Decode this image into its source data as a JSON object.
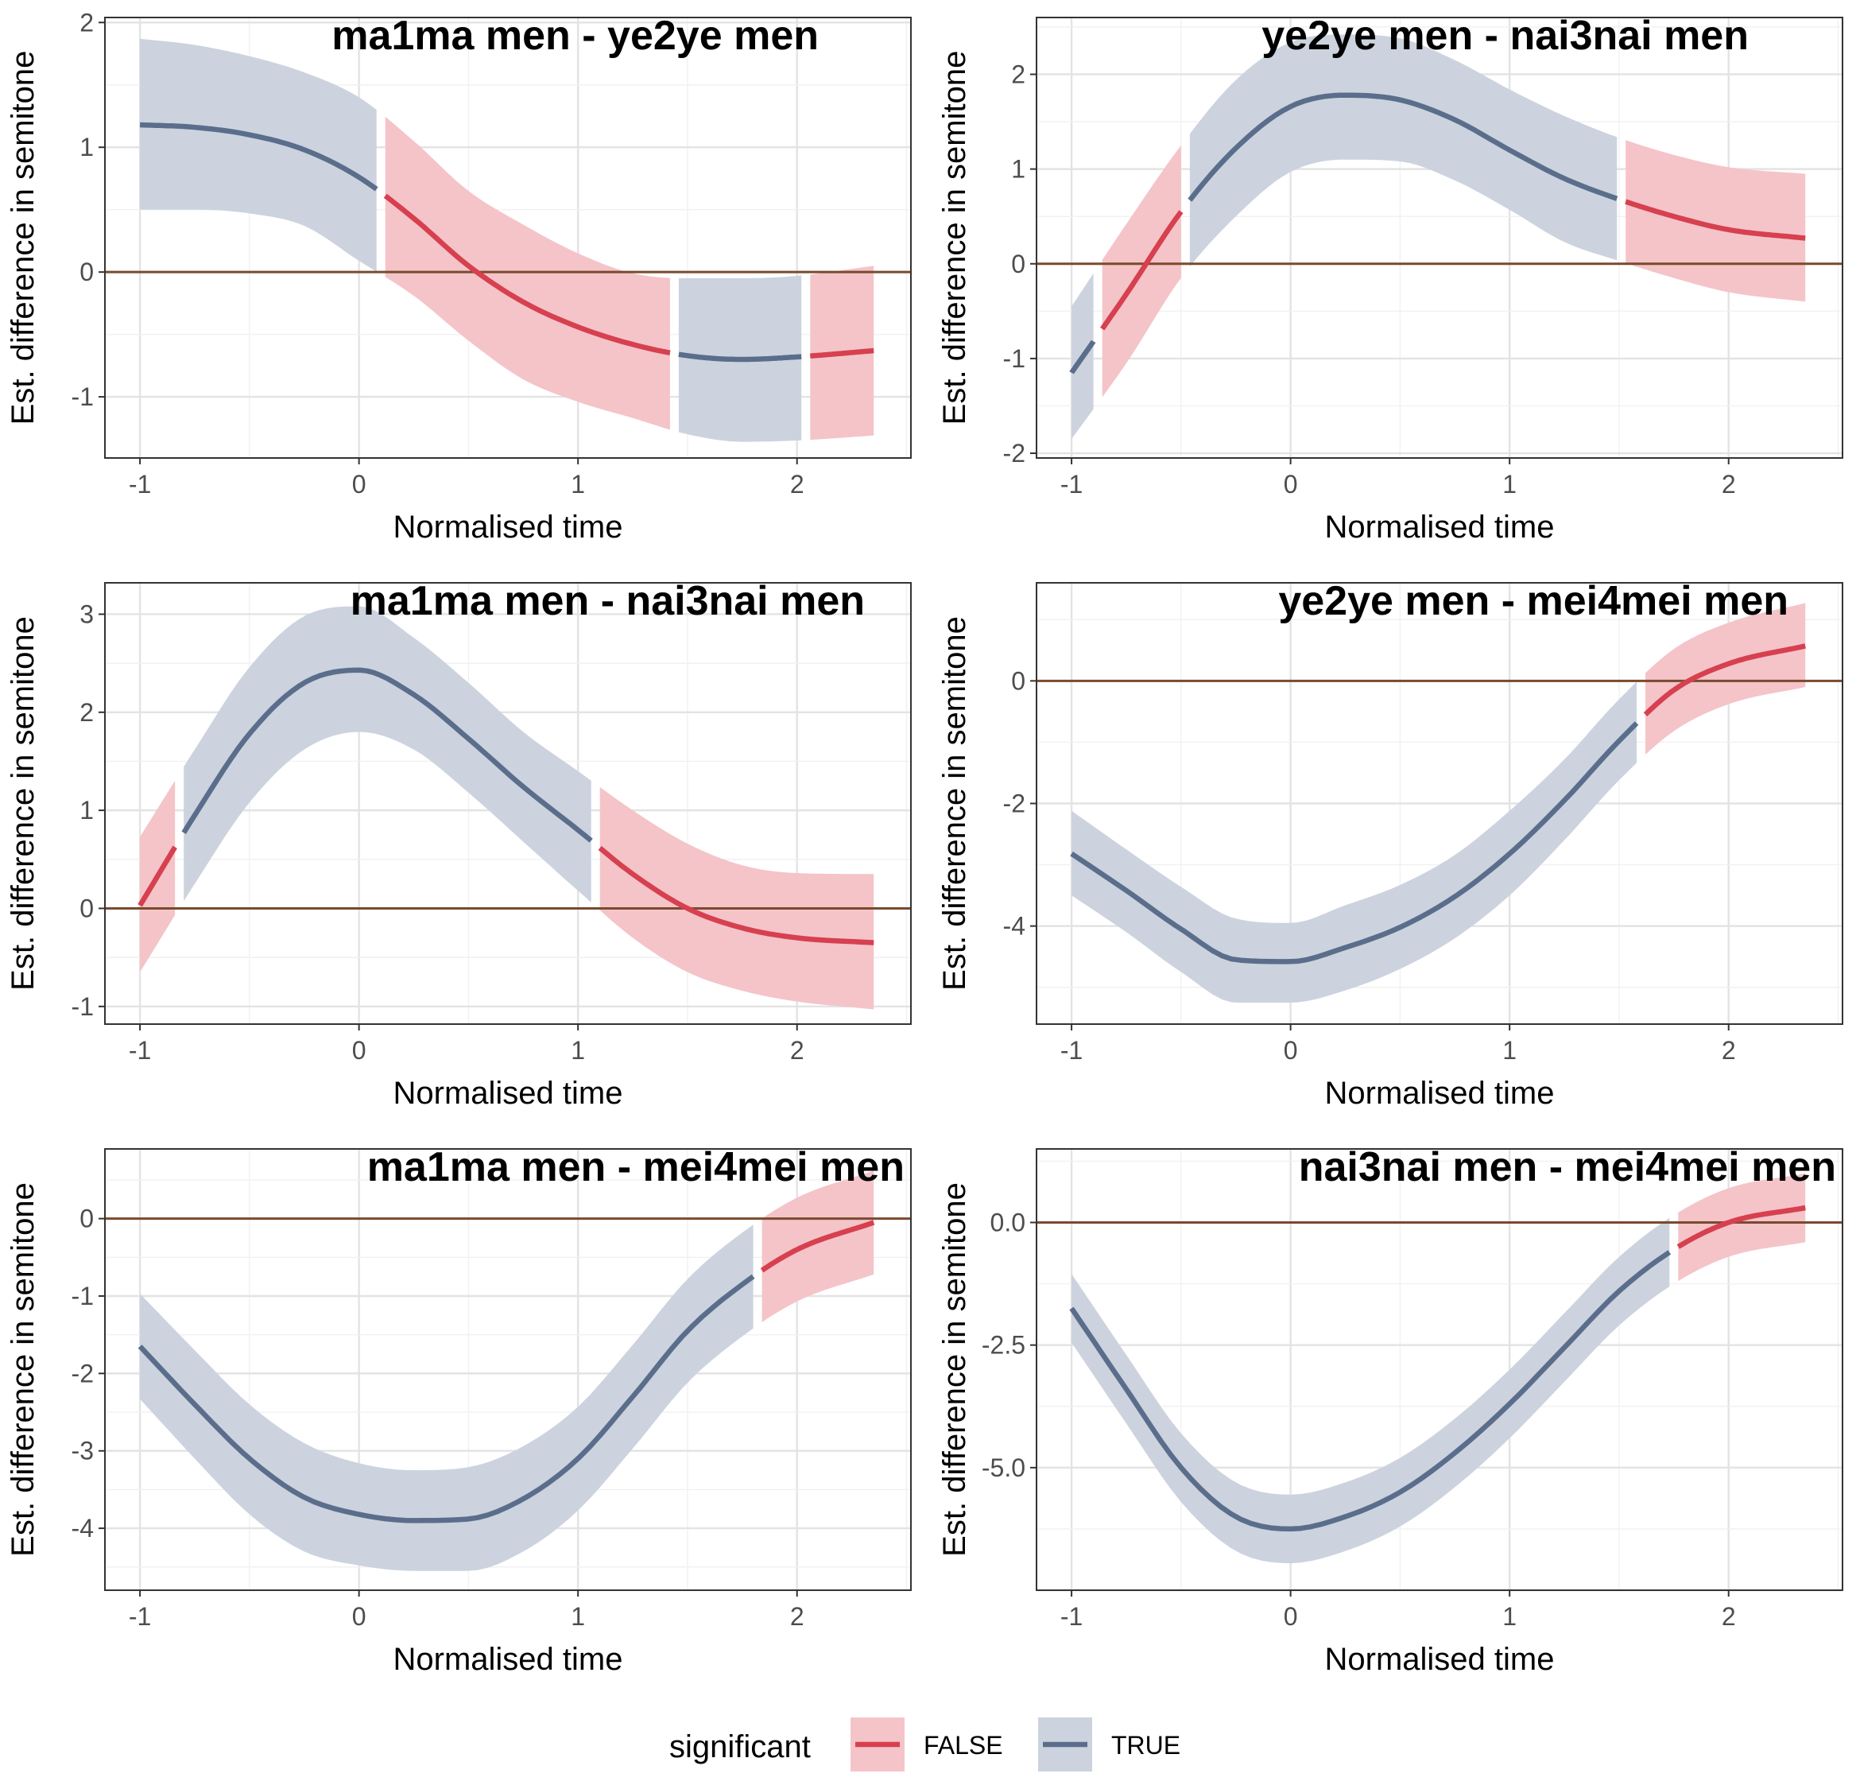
{
  "colors": {
    "false_line": "#d7404f",
    "false_band": "#f4c4c9",
    "true_line": "#5a6e8c",
    "true_band": "#ccd3de",
    "zero_line": "#7a4a2e",
    "grid_major": "#e3e3e3",
    "grid_minor": "#f1f1f1",
    "panel_border": "#333333"
  },
  "legend": {
    "title": "significant",
    "items": [
      {
        "label": "FALSE",
        "key": "false"
      },
      {
        "label": "TRUE",
        "key": "true"
      }
    ]
  },
  "chart_data": [
    {
      "type": "line",
      "title": "ma1ma men - ye2ye men",
      "xlabel": "Normalised time",
      "ylabel": "Est. difference in semitone",
      "xlim": [
        -1.16,
        2.52
      ],
      "ylim": [
        -1.49,
        2.04
      ],
      "xticks": [
        -1,
        0,
        1,
        2
      ],
      "xtick_labels": [
        "-1",
        "0",
        "1",
        "2"
      ],
      "yticks": [
        -1,
        0,
        1,
        2
      ],
      "ytick_labels": [
        "-1",
        "0",
        "1",
        "2"
      ],
      "x": [
        -1.0,
        -0.75,
        -0.5,
        -0.25,
        0.0,
        0.25,
        0.5,
        0.75,
        1.0,
        1.25,
        1.5,
        1.75,
        2.0,
        2.35
      ],
      "fit": [
        1.18,
        1.16,
        1.1,
        0.98,
        0.76,
        0.43,
        0.05,
        -0.24,
        -0.44,
        -0.58,
        -0.67,
        -0.7,
        -0.68,
        -0.63
      ],
      "lower": [
        0.5,
        0.5,
        0.47,
        0.37,
        0.09,
        -0.19,
        -0.55,
        -0.86,
        -1.04,
        -1.17,
        -1.3,
        -1.36,
        -1.35,
        -1.31
      ],
      "upper": [
        1.87,
        1.82,
        1.73,
        1.6,
        1.4,
        1.05,
        0.65,
        0.38,
        0.15,
        -0.01,
        -0.05,
        -0.05,
        -0.03,
        0.05
      ],
      "segments": [
        {
          "from": -1.0,
          "to": 0.08,
          "significant": true
        },
        {
          "from": 0.12,
          "to": 1.42,
          "significant": false
        },
        {
          "from": 1.46,
          "to": 2.02,
          "significant": true
        },
        {
          "from": 2.06,
          "to": 2.35,
          "significant": false
        }
      ]
    },
    {
      "type": "line",
      "title": "ye2ye men - nai3nai men",
      "xlabel": "Normalised time",
      "ylabel": "Est. difference in semitone",
      "xlim": [
        -1.16,
        2.52
      ],
      "ylim": [
        -2.05,
        2.6
      ],
      "xticks": [
        -1,
        0,
        1,
        2
      ],
      "xtick_labels": [
        "-1",
        "0",
        "1",
        "2"
      ],
      "yticks": [
        -2,
        -1,
        0,
        1,
        2
      ],
      "ytick_labels": [
        "-2",
        "-1",
        "0",
        "1",
        "2"
      ],
      "x": [
        -1.0,
        -0.75,
        -0.5,
        -0.25,
        0.0,
        0.25,
        0.5,
        0.75,
        1.0,
        1.25,
        1.5,
        1.75,
        2.0,
        2.35
      ],
      "fit": [
        -1.15,
        -0.32,
        0.55,
        1.22,
        1.66,
        1.78,
        1.73,
        1.52,
        1.2,
        0.9,
        0.68,
        0.5,
        0.36,
        0.27
      ],
      "lower": [
        -1.85,
        -1.05,
        -0.15,
        0.5,
        0.97,
        1.1,
        1.08,
        0.88,
        0.57,
        0.23,
        0.03,
        -0.15,
        -0.3,
        -0.4
      ],
      "upper": [
        -0.45,
        0.42,
        1.25,
        1.94,
        2.34,
        2.42,
        2.38,
        2.15,
        1.84,
        1.56,
        1.33,
        1.15,
        1.02,
        0.95
      ],
      "segments": [
        {
          "from": -1.0,
          "to": -0.9,
          "significant": true
        },
        {
          "from": -0.86,
          "to": -0.5,
          "significant": false
        },
        {
          "from": -0.46,
          "to": 1.49,
          "significant": true
        },
        {
          "from": 1.53,
          "to": 2.35,
          "significant": false
        }
      ]
    },
    {
      "type": "line",
      "title": "ma1ma men - nai3nai men",
      "xlabel": "Normalised time",
      "ylabel": "Est. difference in semitone",
      "xlim": [
        -1.16,
        2.52
      ],
      "ylim": [
        -1.18,
        3.32
      ],
      "xticks": [
        -1,
        0,
        1,
        2
      ],
      "xtick_labels": [
        "-1",
        "0",
        "1",
        "2"
      ],
      "yticks": [
        -1,
        0,
        1,
        2,
        3
      ],
      "ytick_labels": [
        "-1",
        "0",
        "1",
        "2",
        "3"
      ],
      "x": [
        -1.0,
        -0.75,
        -0.5,
        -0.25,
        0.0,
        0.25,
        0.5,
        0.75,
        1.0,
        1.25,
        1.5,
        1.75,
        2.0,
        2.35
      ],
      "fit": [
        0.03,
        0.95,
        1.78,
        2.3,
        2.43,
        2.18,
        1.73,
        1.24,
        0.8,
        0.35,
        0.0,
        -0.2,
        -0.3,
        -0.35
      ],
      "lower": [
        -0.65,
        0.25,
        1.08,
        1.62,
        1.8,
        1.62,
        1.18,
        0.68,
        0.18,
        -0.3,
        -0.65,
        -0.84,
        -0.95,
        -1.03
      ],
      "upper": [
        0.73,
        1.62,
        2.46,
        2.98,
        3.08,
        2.76,
        2.3,
        1.8,
        1.4,
        1.0,
        0.66,
        0.44,
        0.36,
        0.35
      ],
      "segments": [
        {
          "from": -1.0,
          "to": -0.84,
          "significant": false
        },
        {
          "from": -0.8,
          "to": 1.06,
          "significant": true
        },
        {
          "from": 1.1,
          "to": 2.35,
          "significant": false
        }
      ]
    },
    {
      "type": "line",
      "title": "ye2ye men - mei4mei men",
      "xlabel": "Normalised time",
      "ylabel": "Est. difference in semitone",
      "xlim": [
        -1.16,
        2.52
      ],
      "ylim": [
        -5.6,
        1.6
      ],
      "xticks": [
        -1,
        0,
        1,
        2
      ],
      "xtick_labels": [
        "-1",
        "0",
        "1",
        "2"
      ],
      "yticks": [
        -4,
        -2,
        0
      ],
      "ytick_labels": [
        "-4",
        "-2",
        "0"
      ],
      "x": [
        -1.0,
        -0.75,
        -0.5,
        -0.25,
        0.0,
        0.25,
        0.5,
        0.75,
        1.0,
        1.25,
        1.5,
        1.75,
        2.0,
        2.35
      ],
      "fit": [
        -2.82,
        -3.42,
        -4.05,
        -4.55,
        -4.58,
        -4.35,
        -4.02,
        -3.52,
        -2.82,
        -1.95,
        -0.98,
        -0.15,
        0.28,
        0.57
      ],
      "lower": [
        -3.5,
        -4.1,
        -4.75,
        -5.25,
        -5.25,
        -5.05,
        -4.7,
        -4.2,
        -3.5,
        -2.6,
        -1.62,
        -0.82,
        -0.38,
        -0.1
      ],
      "upper": [
        -2.12,
        -2.75,
        -3.36,
        -3.88,
        -3.95,
        -3.66,
        -3.33,
        -2.84,
        -2.12,
        -1.28,
        -0.3,
        0.52,
        0.95,
        1.27
      ],
      "segments": [
        {
          "from": -1.0,
          "to": 1.58,
          "significant": true
        },
        {
          "from": 1.62,
          "to": 2.35,
          "significant": false
        }
      ]
    },
    {
      "type": "line",
      "title": "ma1ma men - mei4mei men",
      "xlabel": "Normalised time",
      "ylabel": "Est. difference in semitone",
      "xlim": [
        -1.16,
        2.52
      ],
      "ylim": [
        -4.8,
        0.9
      ],
      "xticks": [
        -1,
        0,
        1,
        2
      ],
      "xtick_labels": [
        "-1",
        "0",
        "1",
        "2"
      ],
      "yticks": [
        -4,
        -3,
        -2,
        -1,
        0
      ],
      "ytick_labels": [
        "-4",
        "-3",
        "-2",
        "-1",
        "0"
      ],
      "x": [
        -1.0,
        -0.75,
        -0.5,
        -0.25,
        0.0,
        0.25,
        0.5,
        0.75,
        1.0,
        1.25,
        1.5,
        1.75,
        2.0,
        2.35
      ],
      "fit": [
        -1.65,
        -2.4,
        -3.1,
        -3.6,
        -3.82,
        -3.9,
        -3.88,
        -3.62,
        -3.1,
        -2.3,
        -1.45,
        -0.85,
        -0.4,
        -0.05
      ],
      "lower": [
        -2.33,
        -3.1,
        -3.82,
        -4.3,
        -4.48,
        -4.55,
        -4.55,
        -4.3,
        -3.77,
        -2.97,
        -2.12,
        -1.52,
        -1.07,
        -0.72
      ],
      "upper": [
        -0.97,
        -1.7,
        -2.4,
        -2.9,
        -3.16,
        -3.25,
        -3.21,
        -2.94,
        -2.43,
        -1.63,
        -0.78,
        -0.18,
        0.27,
        0.62
      ],
      "segments": [
        {
          "from": -1.0,
          "to": 1.8,
          "significant": true
        },
        {
          "from": 1.84,
          "to": 2.35,
          "significant": false
        }
      ]
    },
    {
      "type": "line",
      "title": "nai3nai men - mei4mei men",
      "xlabel": "Normalised time",
      "ylabel": "Est. difference in semitone",
      "xlim": [
        -1.16,
        2.52
      ],
      "ylim": [
        -7.5,
        1.5
      ],
      "xticks": [
        -1,
        0,
        1,
        2
      ],
      "xtick_labels": [
        "-1",
        "0",
        "1",
        "2"
      ],
      "yticks": [
        -5,
        -2.5,
        0
      ],
      "ytick_labels": [
        "-5.0",
        "-2.5",
        "0.0"
      ],
      "x": [
        -1.0,
        -0.75,
        -0.5,
        -0.25,
        0.0,
        0.25,
        0.5,
        0.75,
        1.0,
        1.25,
        1.5,
        1.75,
        2.0,
        2.35
      ],
      "fit": [
        -1.75,
        -3.4,
        -5.0,
        -6.0,
        -6.25,
        -6.0,
        -5.5,
        -4.7,
        -3.7,
        -2.55,
        -1.4,
        -0.55,
        0.0,
        0.3
      ],
      "lower": [
        -2.45,
        -4.1,
        -5.7,
        -6.7,
        -6.95,
        -6.7,
        -6.2,
        -5.4,
        -4.4,
        -3.25,
        -2.1,
        -1.25,
        -0.7,
        -0.4
      ],
      "upper": [
        -1.05,
        -2.7,
        -4.3,
        -5.3,
        -5.55,
        -5.3,
        -4.8,
        -4.0,
        -3.0,
        -1.85,
        -0.7,
        0.15,
        0.7,
        1.0
      ],
      "segments": [
        {
          "from": -1.0,
          "to": 1.73,
          "significant": true
        },
        {
          "from": 1.77,
          "to": 2.35,
          "significant": false
        }
      ]
    }
  ]
}
